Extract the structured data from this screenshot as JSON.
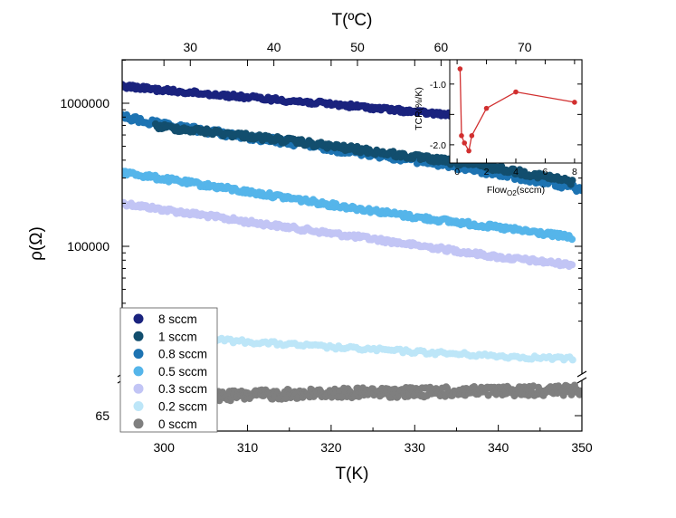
{
  "chart_data": [
    {
      "type": "scatter",
      "xlabel": "T(K)",
      "x2label": "T(ºC)",
      "ylabel": "ρ(Ω)",
      "xlim": [
        295,
        350
      ],
      "x_ticks": [
        300,
        310,
        320,
        330,
        340,
        350
      ],
      "x2_ticks": [
        30,
        40,
        50,
        60,
        70
      ],
      "y_scale": "log (broken axis)",
      "y_ticks": [
        {
          "value": 1000000,
          "label": "1000000"
        },
        {
          "value": 100000,
          "label": "100000"
        },
        {
          "value": 65,
          "label": "65"
        }
      ],
      "legend_position": "bottom-left",
      "series": [
        {
          "name": "8 sccm",
          "color": "#1a237e",
          "x": [
            295,
            300,
            310,
            320,
            330,
            340,
            349
          ],
          "y": [
            1320000,
            1230000,
            1100000,
            985000,
            870000,
            770000,
            690000
          ]
        },
        {
          "name": "1 sccm",
          "color": "#124e6e",
          "x": [
            299,
            310,
            320,
            330,
            340,
            349
          ],
          "y": [
            690000,
            590000,
            500000,
            420000,
            350000,
            280000
          ]
        },
        {
          "name": "0.8 sccm",
          "color": "#1d73b2",
          "x": [
            295,
            300,
            310,
            320,
            330,
            340,
            350
          ],
          "y": [
            800000,
            700000,
            580000,
            480000,
            400000,
            320000,
            250000
          ]
        },
        {
          "name": "0.5 sccm",
          "color": "#55b5ea",
          "x": [
            295,
            300,
            310,
            320,
            330,
            340,
            349
          ],
          "y": [
            330000,
            295000,
            240000,
            195000,
            160000,
            135000,
            115000
          ]
        },
        {
          "name": "0.3 sccm",
          "color": "#c2c5f5",
          "x": [
            295,
            300,
            310,
            320,
            330,
            340,
            349
          ],
          "y": [
            200000,
            180000,
            148000,
            123000,
            102000,
            84000,
            74000
          ]
        },
        {
          "name": "0.2 sccm",
          "color": "#bde6f8",
          "x": [
            295,
            300,
            310,
            320,
            330,
            340,
            349
          ],
          "y": [
            25000,
            23500,
            21500,
            19700,
            18300,
            17100,
            16300
          ]
        },
        {
          "name": "0 sccm",
          "color": "#7f7f7f",
          "x": [
            295,
            300,
            310,
            320,
            330,
            340,
            350
          ],
          "y": [
            66.5,
            66.8,
            67.1,
            67.3,
            67.4,
            67.5,
            67.6
          ]
        }
      ]
    },
    {
      "type": "line",
      "xlabel": "Flow(sccm)",
      "xlabel_parts": {
        "main": "Flow",
        "sub": "O2",
        "unit": "(sccm)"
      },
      "ylabel": "TCR(%/K)",
      "xlim": [
        -0.5,
        8.5
      ],
      "ylim": [
        -2.3,
        -0.6
      ],
      "x_ticks": [
        0,
        2,
        4,
        6,
        8
      ],
      "y_ticks": [
        -1.0,
        -1.5,
        -2.0
      ],
      "y_tick_labels": [
        "-1.0",
        "",
        "-2.0"
      ],
      "color": "#d12f2f",
      "x": [
        0.2,
        0.3,
        0.5,
        0.8,
        1.0,
        2.0,
        4.0,
        8.0
      ],
      "y": [
        -0.75,
        -1.85,
        -1.97,
        -2.1,
        -1.85,
        -1.4,
        -1.13,
        -1.3
      ]
    }
  ]
}
